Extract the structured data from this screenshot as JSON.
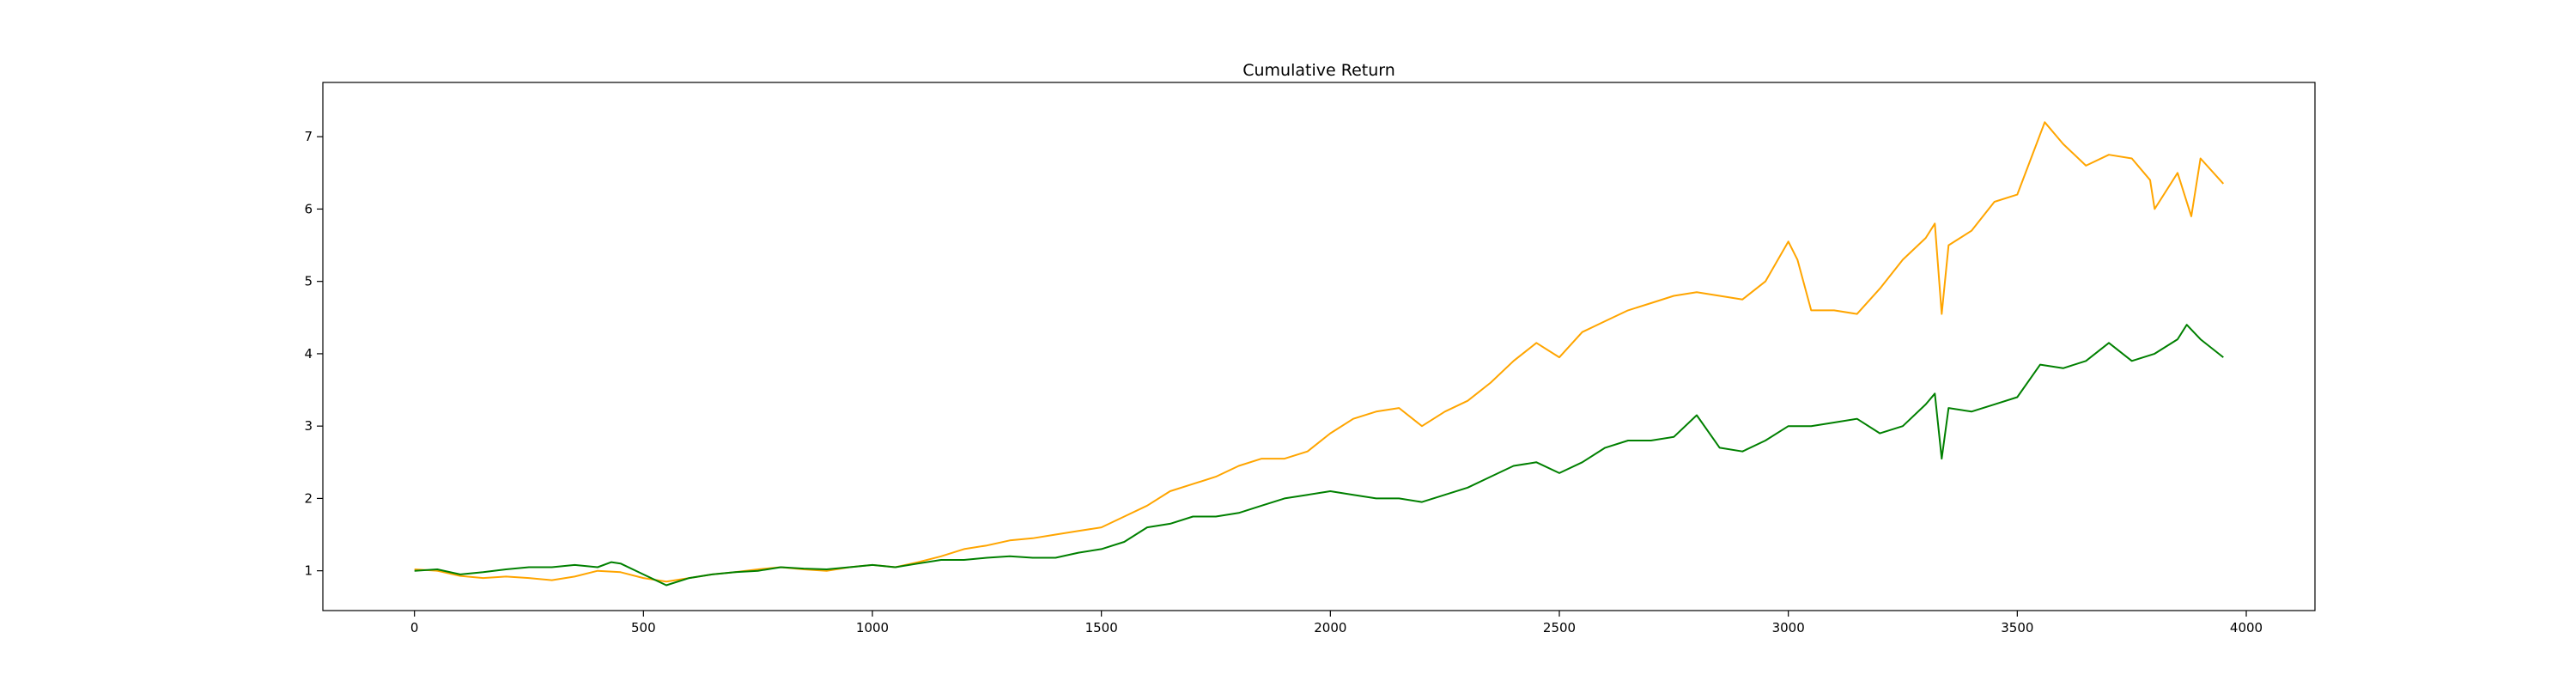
{
  "chart_data": {
    "type": "line",
    "title": "Cumulative Return",
    "xlabel": "",
    "ylabel": "",
    "xlim": [
      -200,
      4150
    ],
    "ylim": [
      0.45,
      7.75
    ],
    "xticks": [
      0,
      500,
      1000,
      1500,
      2000,
      2500,
      3000,
      3500,
      4000
    ],
    "yticks": [
      1,
      2,
      3,
      4,
      5,
      6,
      7
    ],
    "grid": false,
    "legend": "none",
    "series": [
      {
        "color": "#ffa500",
        "x": [
          0,
          50,
          100,
          150,
          200,
          250,
          300,
          350,
          400,
          450,
          500,
          550,
          600,
          650,
          700,
          750,
          800,
          850,
          900,
          950,
          1000,
          1050,
          1100,
          1150,
          1200,
          1250,
          1300,
          1350,
          1400,
          1450,
          1500,
          1550,
          1600,
          1650,
          1700,
          1750,
          1800,
          1850,
          1900,
          1950,
          2000,
          2050,
          2100,
          2150,
          2200,
          2250,
          2300,
          2350,
          2400,
          2450,
          2500,
          2550,
          2600,
          2650,
          2700,
          2750,
          2800,
          2850,
          2900,
          2950,
          3000,
          3020,
          3050,
          3100,
          3150,
          3200,
          3250,
          3300,
          3320,
          3335,
          3350,
          3400,
          3450,
          3500,
          3530,
          3560,
          3600,
          3650,
          3700,
          3750,
          3790,
          3800,
          3850,
          3880,
          3900,
          3950
        ],
        "values": [
          1.02,
          1.0,
          0.93,
          0.9,
          0.92,
          0.9,
          0.87,
          0.92,
          1.0,
          0.98,
          0.9,
          0.85,
          0.9,
          0.95,
          0.98,
          1.02,
          1.05,
          1.02,
          1.0,
          1.05,
          1.08,
          1.05,
          1.12,
          1.2,
          1.3,
          1.35,
          1.42,
          1.45,
          1.5,
          1.55,
          1.6,
          1.75,
          1.9,
          2.1,
          2.2,
          2.3,
          2.45,
          2.55,
          2.55,
          2.65,
          2.9,
          3.1,
          3.2,
          3.25,
          3.0,
          3.2,
          3.35,
          3.6,
          3.9,
          4.15,
          3.95,
          4.3,
          4.45,
          4.6,
          4.7,
          4.8,
          4.85,
          4.8,
          4.75,
          5.0,
          5.55,
          5.3,
          4.6,
          4.6,
          4.55,
          4.9,
          5.3,
          5.6,
          5.8,
          4.55,
          5.5,
          5.7,
          6.1,
          6.2,
          6.7,
          7.2,
          6.9,
          6.6,
          6.75,
          6.7,
          6.4,
          6.0,
          6.5,
          5.9,
          6.7,
          6.35
        ]
      },
      {
        "color": "#008000",
        "x": [
          0,
          50,
          100,
          150,
          200,
          250,
          300,
          350,
          400,
          430,
          450,
          500,
          550,
          600,
          650,
          700,
          750,
          800,
          850,
          900,
          950,
          1000,
          1050,
          1100,
          1150,
          1200,
          1250,
          1300,
          1350,
          1400,
          1450,
          1500,
          1550,
          1600,
          1650,
          1700,
          1750,
          1800,
          1850,
          1900,
          1950,
          2000,
          2050,
          2100,
          2150,
          2200,
          2250,
          2300,
          2350,
          2400,
          2450,
          2500,
          2550,
          2600,
          2650,
          2700,
          2750,
          2800,
          2850,
          2900,
          2950,
          3000,
          3050,
          3100,
          3150,
          3200,
          3250,
          3300,
          3320,
          3335,
          3350,
          3400,
          3450,
          3500,
          3550,
          3600,
          3650,
          3700,
          3750,
          3800,
          3850,
          3870,
          3900,
          3950
        ],
        "values": [
          1.0,
          1.02,
          0.95,
          0.98,
          1.02,
          1.05,
          1.05,
          1.08,
          1.05,
          1.12,
          1.1,
          0.95,
          0.8,
          0.9,
          0.95,
          0.98,
          1.0,
          1.05,
          1.03,
          1.02,
          1.05,
          1.08,
          1.05,
          1.1,
          1.15,
          1.15,
          1.18,
          1.2,
          1.18,
          1.18,
          1.25,
          1.3,
          1.4,
          1.6,
          1.65,
          1.75,
          1.75,
          1.8,
          1.9,
          2.0,
          2.05,
          2.1,
          2.05,
          2.0,
          2.0,
          1.95,
          2.05,
          2.15,
          2.3,
          2.45,
          2.5,
          2.35,
          2.5,
          2.7,
          2.8,
          2.8,
          2.85,
          3.15,
          2.7,
          2.65,
          2.8,
          3.0,
          3.0,
          3.05,
          3.1,
          2.9,
          3.0,
          3.3,
          3.45,
          2.55,
          3.25,
          3.2,
          3.3,
          3.4,
          3.85,
          3.8,
          3.9,
          4.15,
          3.9,
          4.0,
          4.2,
          4.4,
          4.2,
          3.95
        ]
      }
    ]
  }
}
